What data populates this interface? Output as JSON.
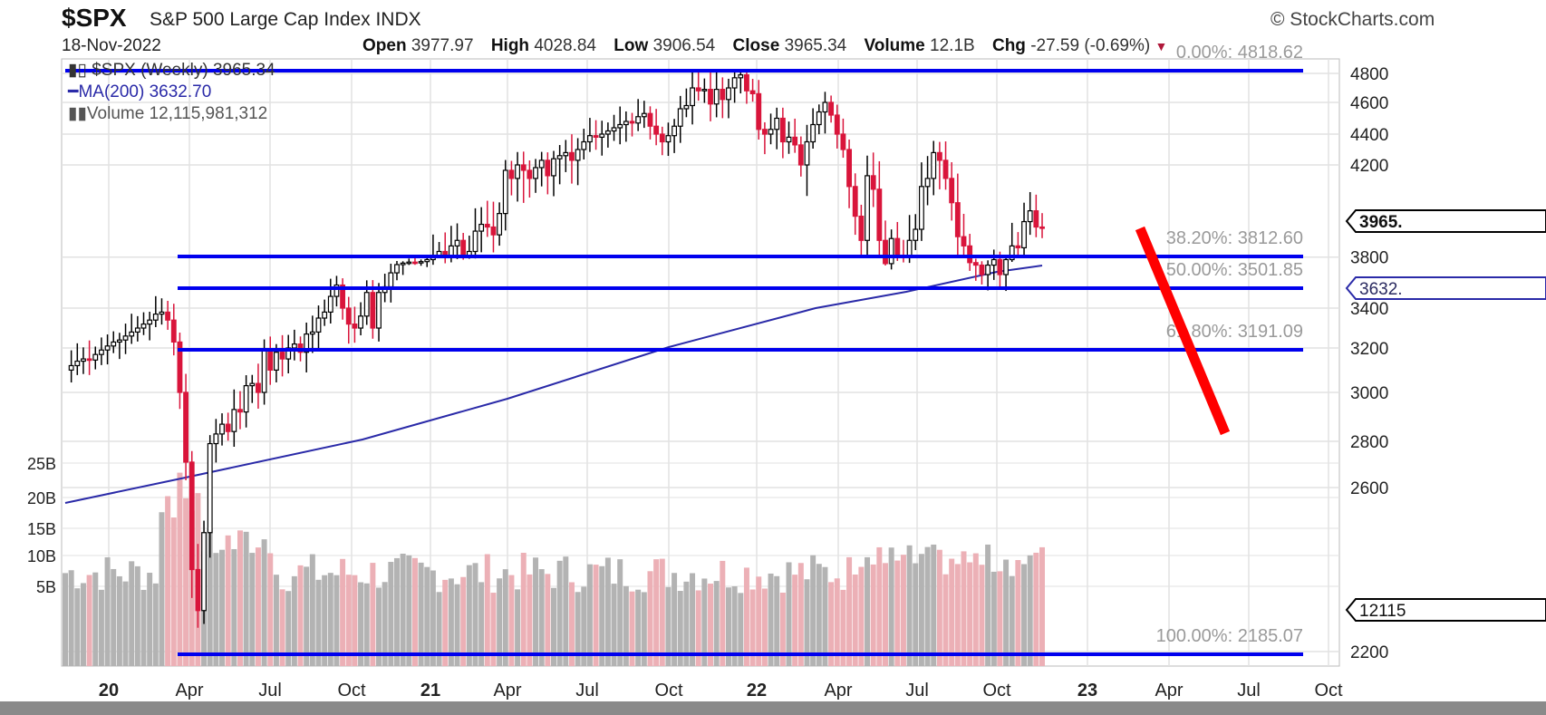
{
  "header": {
    "symbol": "$SPX",
    "name": "S&P 500 Large Cap Index INDX",
    "copyright": "© StockCharts.com",
    "date": "18-Nov-2022",
    "quote": [
      {
        "label": "Open",
        "value": "3977.97"
      },
      {
        "label": "High",
        "value": "4028.84"
      },
      {
        "label": "Low",
        "value": "3906.54"
      },
      {
        "label": "Close",
        "value": "3965.34"
      },
      {
        "label": "Volume",
        "value": "12.1B"
      },
      {
        "label": "Chg",
        "value": "-27.59 (-0.69%)"
      }
    ],
    "change_direction": "down-triangle-icon"
  },
  "legend": {
    "price": "$SPX (Weekly) 3965.34",
    "ma": "MA(200) 3632.70",
    "volume": "Volume 12,115,981,312"
  },
  "colors": {
    "up_candle": "#000000",
    "down_candle": "#d9153b",
    "fib_line": "#0000ee",
    "ma_line": "#2a2aa8",
    "vol_up": "#b3b3b3",
    "vol_down": "#ecb0b6",
    "projection_arrow": "#ff0000",
    "grid": "#e2e2e2"
  },
  "chart_data": {
    "type": "candlestick",
    "title": "$SPX S&P 500 Large Cap Index INDX (Weekly)",
    "scale": "log",
    "xlabel": "",
    "ylabel": "",
    "ylim": [
      2150,
      4850
    ],
    "grid": true,
    "legend_position": "top-left",
    "x_ticks": [
      "20",
      "Apr",
      "Jul",
      "Oct",
      "21",
      "Apr",
      "Jul",
      "Oct",
      "22",
      "Apr",
      "Jul",
      "Oct",
      "23",
      "Apr",
      "Jul",
      "Oct"
    ],
    "y_ticks": [
      4800,
      4600,
      4400,
      4200,
      3800,
      3400,
      3200,
      3000,
      2800,
      2600,
      2200
    ],
    "volume_ticks": [
      "25B",
      "20B",
      "15B",
      "10B",
      "5B"
    ],
    "price_tags": [
      {
        "label": "3965.",
        "value": 3965.34,
        "type": "close"
      },
      {
        "label": "3632.",
        "value": 3632.7,
        "type": "ma"
      },
      {
        "label": "12115",
        "value": 12115981312,
        "type": "volume"
      }
    ],
    "fibonacci_levels": [
      {
        "label": "0.00%: 4818.62",
        "value": 4818.62
      },
      {
        "label": "38.20%: 3812.60",
        "value": 3812.6
      },
      {
        "label": "50.00%: 3501.85",
        "value": 3501.85
      },
      {
        "label": "61.80%: 3191.09",
        "value": 3191.09
      },
      {
        "label": "100.00%: 2185.07",
        "value": 2185.07
      }
    ],
    "series": [
      {
        "name": "$SPX weekly close (approx.)",
        "x_start": "2019-11",
        "values": [
          3100,
          3120,
          3140,
          3150,
          3145,
          3170,
          3190,
          3210,
          3230,
          3240,
          3260,
          3280,
          3300,
          3320,
          3340,
          3370,
          3380,
          3340,
          3230,
          3000,
          2710,
          2400,
          2300,
          2490,
          2790,
          2830,
          2870,
          2840,
          2930,
          2920,
          3030,
          3040,
          3000,
          3190,
          3100,
          3180,
          3150,
          3200,
          3220,
          3180,
          3270,
          3280,
          3350,
          3380,
          3460,
          3520,
          3400,
          3320,
          3300,
          3360,
          3480,
          3300,
          3480,
          3510,
          3590,
          3650,
          3680,
          3700,
          3690,
          3710,
          3750,
          3820,
          3840,
          3790,
          3870,
          3900,
          3810,
          3840,
          3950,
          3980,
          3970,
          3930,
          4020,
          4180,
          4150,
          4200,
          4180,
          4150,
          4190,
          4230,
          4160,
          4240,
          4260,
          4280,
          4230,
          4300,
          4350,
          4390,
          4380,
          4400,
          4420,
          4440,
          4460,
          4480,
          4470,
          4510,
          4530,
          4450,
          4400,
          4350,
          4390,
          4450,
          4560,
          4580,
          4700,
          4680,
          4690,
          4590,
          4690,
          4620,
          4700,
          4770,
          4790,
          4680,
          4660,
          4430,
          4400,
          4430,
          4500,
          4350,
          4380,
          4330,
          4200,
          4350,
          4460,
          4540,
          4600,
          4520,
          4400,
          4300,
          4120,
          4010,
          3900,
          4160,
          4110,
          3900,
          3670,
          3910,
          3820,
          3790,
          3900,
          3960,
          4120,
          4150,
          4280,
          4230,
          4150,
          4060,
          3920,
          3870,
          3690,
          3640,
          3580,
          3640,
          3750,
          3580,
          3750,
          3870,
          3860,
          3990,
          4030,
          3970,
          3965
        ]
      },
      {
        "name": "MA(200)",
        "values_sampled": [
          {
            "x": "2019-11",
            "y": 2580
          },
          {
            "x": "2020-04",
            "y": 2670
          },
          {
            "x": "2021-01",
            "y": 3050
          },
          {
            "x": "2021-10",
            "y": 3350
          },
          {
            "x": "2022-06",
            "y": 3560
          },
          {
            "x": "2022-11",
            "y": 3632.7
          }
        ]
      }
    ],
    "annotations": [
      {
        "type": "arrow-line",
        "color": "#ff0000",
        "from": {
          "x": "2022-11",
          "y": 3850
        },
        "to": {
          "x": "2023-02",
          "y": 3000
        },
        "label": "projected decline"
      }
    ]
  }
}
